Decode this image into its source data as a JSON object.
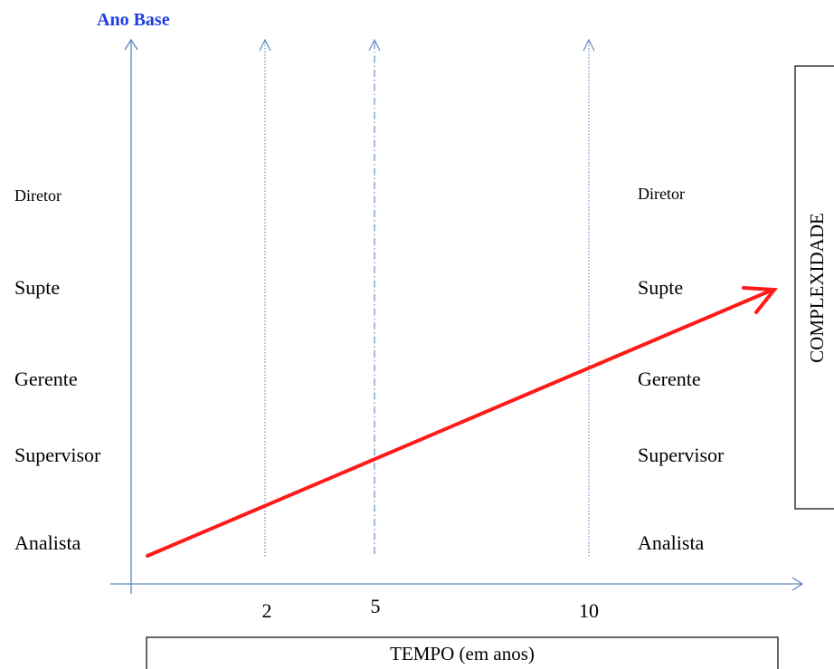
{
  "title": "Ano Base",
  "x_axis_label": "TEMPO (em anos)",
  "side_label": "COMPLEXIDADE",
  "time_markers": [
    "2",
    "5",
    "10"
  ],
  "levels_left": [
    "Diretor",
    "Supte",
    "Gerente",
    "Supervisor",
    "Analista"
  ],
  "levels_right": [
    "Diretor",
    "Supte",
    "Gerente",
    "Supervisor",
    "Analista"
  ],
  "colors": {
    "axis": "#5b84c4",
    "title": "#1f3fe0",
    "trend_arrow": "#ff1a1a",
    "text": "#000000"
  }
}
